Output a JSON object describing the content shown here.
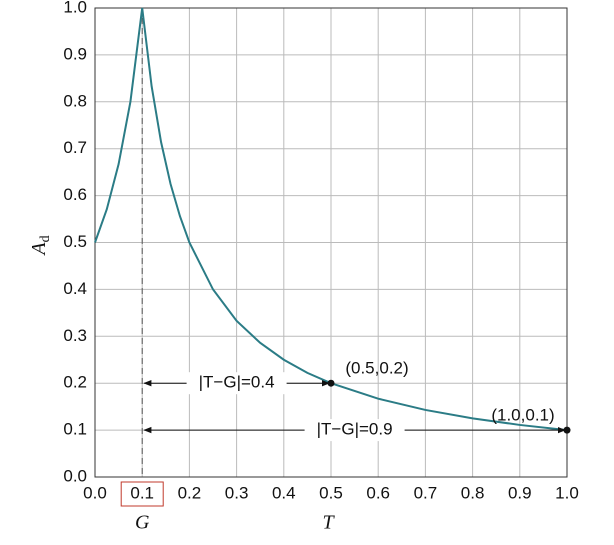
{
  "chart_data": {
    "type": "line",
    "xlabel": "T",
    "ylabel": "A",
    "ylabel_subscript": "d",
    "x": [
      0,
      0.025,
      0.05,
      0.075,
      0.1,
      0.12,
      0.14,
      0.16,
      0.18,
      0.2,
      0.25,
      0.3,
      0.35,
      0.4,
      0.45,
      0.5,
      0.6,
      0.7,
      0.8,
      0.9,
      1.0
    ],
    "series": [
      {
        "color": "#2b7c86",
        "values": [
          0.5,
          0.571,
          0.667,
          0.8,
          1.0,
          0.833,
          0.714,
          0.625,
          0.556,
          0.5,
          0.4,
          0.333,
          0.286,
          0.25,
          0.222,
          0.2,
          0.167,
          0.143,
          0.125,
          0.111,
          0.1
        ]
      }
    ],
    "xlim": [
      0,
      1
    ],
    "ylim": [
      0,
      1
    ],
    "xticks": [
      {
        "value": 0,
        "label": "0.0"
      },
      0.1,
      0.2,
      0.3,
      0.4,
      0.5,
      0.6,
      0.7,
      0.8,
      0.9,
      {
        "value": 1,
        "label": "1.0"
      }
    ],
    "yticks": [
      {
        "value": 0,
        "label": "0.0"
      },
      0.1,
      0.2,
      0.3,
      0.4,
      0.5,
      0.6,
      0.7,
      0.8,
      0.9,
      {
        "value": 1,
        "label": "1.0"
      }
    ],
    "grid": true,
    "reference_line": {
      "x": 0.1,
      "label": "G"
    },
    "points": [
      {
        "x": 0.5,
        "y": 0.2,
        "label": "(0.5,0.2)"
      },
      {
        "x": 1.0,
        "y": 0.1,
        "label": "(1.0,0.1)"
      }
    ],
    "arrows": [
      {
        "x": [
          0.1,
          0.5
        ],
        "y": 0.2,
        "label": "|T−G|=0.4"
      },
      {
        "x": [
          0.1,
          1.0
        ],
        "y": 0.1,
        "label": "|T−G|=0.9"
      }
    ]
  }
}
